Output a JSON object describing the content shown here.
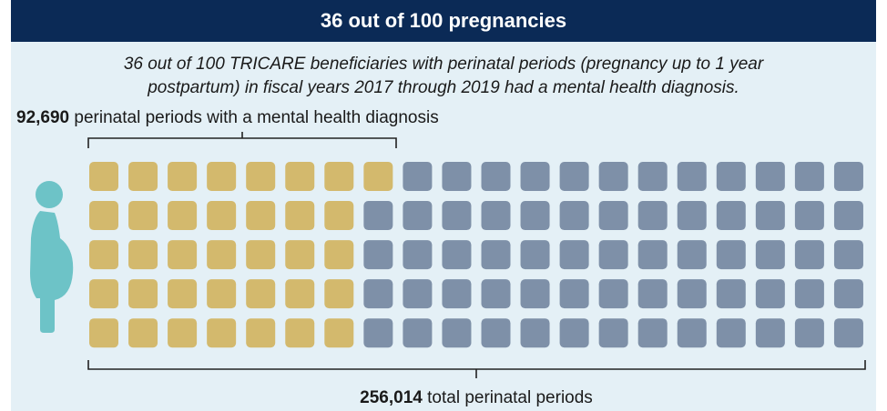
{
  "chart_data": {
    "type": "waffle",
    "title": "36 out of 100 pregnancies",
    "subtitle": [
      "36 out of 100 TRICARE beneficiaries with perinatal periods (pregnancy up to 1 year",
      "postpartum) in fiscal years 2017 through 2019 had a mental health diagnosis."
    ],
    "values": [
      36,
      64
    ],
    "colors": [
      "#d3b96d",
      "#7e90a8"
    ],
    "columns": 20,
    "rows": 5,
    "annotations": [
      {
        "value": 92690,
        "label": "92,690",
        "text": " perinatal periods with a mental health diagnosis"
      },
      {
        "value": 256014,
        "label": "256,014",
        "text": " total perinatal periods"
      }
    ]
  }
}
